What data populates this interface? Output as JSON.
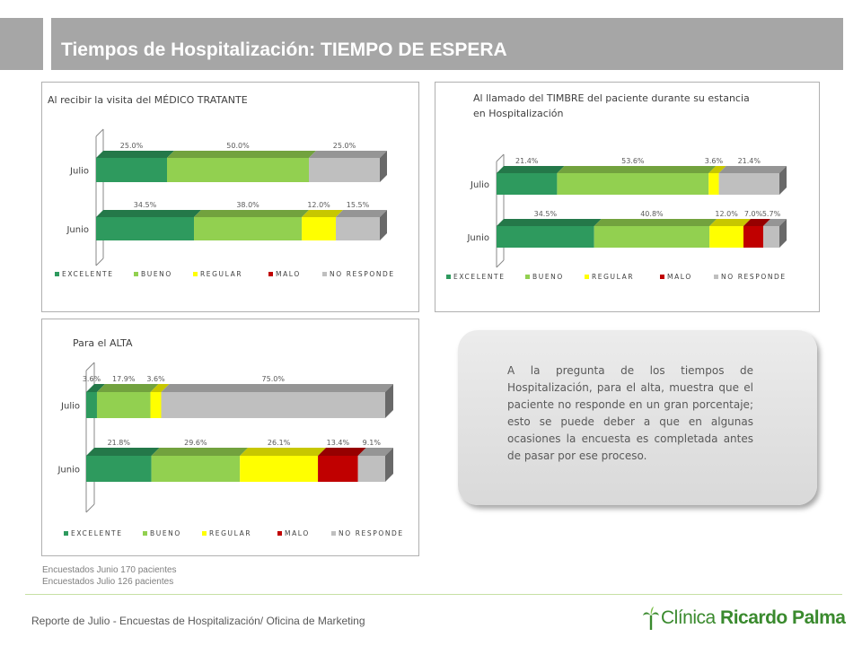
{
  "header": {
    "title": "Tiempos de Hospitalización: TIEMPO DE ESPERA"
  },
  "colors": {
    "EXCELENTE": "#2e9a5e",
    "BUENO": "#92d050",
    "REGULAR": "#ffff00",
    "MALO": "#c00000",
    "NO RESPONDE": "#bfbfbf"
  },
  "legend_labels": [
    "EXCELENTE",
    "BUENO",
    "REGULAR",
    "MALO",
    "NO RESPONDE"
  ],
  "chart_data": [
    {
      "type": "bar",
      "orientation": "horizontal",
      "stacked": "100%",
      "title": "Al recibir la visita del MÉDICO TRATANTE",
      "categories": [
        "Julio",
        "Junio"
      ],
      "series": [
        {
          "name": "EXCELENTE",
          "values": [
            25.0,
            34.5
          ],
          "labels": [
            "25.0%",
            "34.5%"
          ]
        },
        {
          "name": "BUENO",
          "values": [
            50.0,
            38.0
          ],
          "labels": [
            "50.0%",
            "38.0%"
          ]
        },
        {
          "name": "REGULAR",
          "values": [
            0,
            12.0
          ],
          "labels": [
            "",
            "12.0%"
          ]
        },
        {
          "name": "MALO",
          "values": [
            0,
            0
          ],
          "labels": [
            "",
            ""
          ]
        },
        {
          "name": "NO RESPONDE",
          "values": [
            25.0,
            15.5
          ],
          "labels": [
            "25.0%",
            "15.5%"
          ]
        }
      ],
      "legend": "bottom"
    },
    {
      "type": "bar",
      "orientation": "horizontal",
      "stacked": "100%",
      "title": "Al llamado del TIMBRE del paciente durante su estancia  en Hospitalización",
      "categories": [
        "Julio",
        "Junio"
      ],
      "series": [
        {
          "name": "EXCELENTE",
          "values": [
            21.4,
            34.5
          ],
          "labels": [
            "21.4%",
            "34.5%"
          ]
        },
        {
          "name": "BUENO",
          "values": [
            53.6,
            40.8
          ],
          "labels": [
            "53.6%",
            "40.8%"
          ]
        },
        {
          "name": "REGULAR",
          "values": [
            3.6,
            12.0
          ],
          "labels": [
            "3.6%",
            "12.0%"
          ]
        },
        {
          "name": "MALO",
          "values": [
            0,
            7.0
          ],
          "labels": [
            "",
            "7.0%"
          ]
        },
        {
          "name": "NO RESPONDE",
          "values": [
            21.4,
            5.7
          ],
          "labels": [
            "21.4%",
            "5.7%"
          ]
        }
      ],
      "legend": "bottom"
    },
    {
      "type": "bar",
      "orientation": "horizontal",
      "stacked": "100%",
      "title": "Para el ALTA",
      "categories": [
        "Julio",
        "Junio"
      ],
      "series": [
        {
          "name": "EXCELENTE",
          "values": [
            3.6,
            21.8
          ],
          "labels": [
            "3.6%",
            "21.8%"
          ]
        },
        {
          "name": "BUENO",
          "values": [
            17.9,
            29.6
          ],
          "labels": [
            "17.9%",
            "29.6%"
          ]
        },
        {
          "name": "REGULAR",
          "values": [
            3.6,
            26.1
          ],
          "labels": [
            "3.6%",
            "26.1%"
          ]
        },
        {
          "name": "MALO",
          "values": [
            0,
            13.4
          ],
          "labels": [
            "",
            "13.4%"
          ]
        },
        {
          "name": "NO RESPONDE",
          "values": [
            75.0,
            9.1
          ],
          "labels": [
            "75.0%",
            "9.1%"
          ]
        }
      ],
      "legend": "bottom"
    }
  ],
  "note": "A la pregunta de los tiempos de Hospitalización, para el alta, muestra que el paciente no responde en un gran porcentaje; esto se puede deber a que en algunas ocasiones la encuesta es completada antes de pasar por ese proceso.",
  "footnotes": [
    "Encuestados Junio 170 pacientes",
    "Encuestados Julio  126 pacientes"
  ],
  "footer": {
    "text": "Reporte de Julio - Encuestas de Hospitalización/ Oficina de Marketing",
    "logo_word1": "Clínica",
    "logo_word2": " Ricardo Palma"
  }
}
